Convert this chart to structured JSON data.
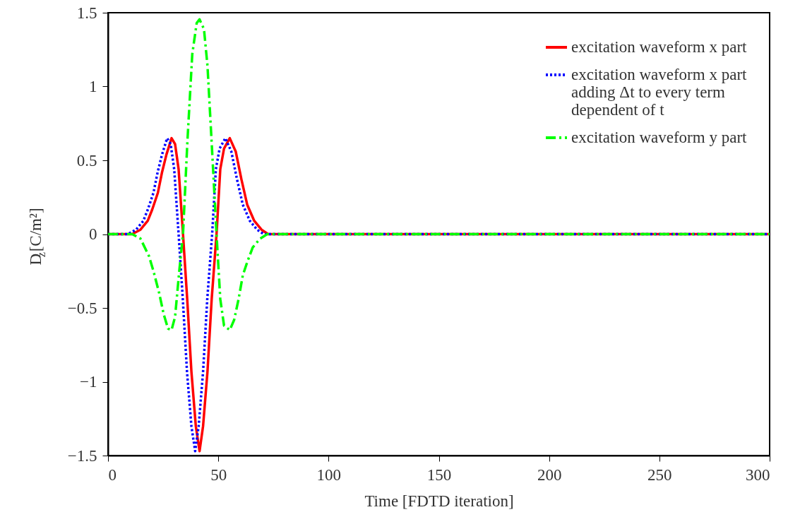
{
  "chart_data": {
    "type": "line",
    "xlabel": "Time [FDTD iteration]",
    "ylabel": "D$_{z}$[C/m²]",
    "xlim": [
      0,
      300
    ],
    "ylim": [
      -1.5,
      1.5
    ],
    "xticks": [
      0,
      50,
      100,
      150,
      200,
      250,
      300
    ],
    "yticks": [
      -1.5,
      {
        "value": -1,
        "label": "−1"
      },
      -0.5,
      {
        "value": 0,
        "label": "0"
      },
      0.5,
      {
        "value": 1,
        "label": "1"
      },
      1.5
    ],
    "grid": false,
    "legend": "top right",
    "marker": "none",
    "series": [
      {
        "name": "excitation waveform x part",
        "color": "#ff0000",
        "line_style": "solid",
        "x": [
          0,
          10.9,
          14.7,
          18,
          20,
          22.6,
          24.5,
          26.5,
          28.8,
          30.4,
          32,
          34,
          35.9,
          37.8,
          39.8,
          41.5,
          43.1,
          45.1,
          47,
          49.2,
          50.9,
          52.6,
          55.2,
          57.9,
          60.5,
          63.1,
          66.3,
          69.6,
          72.6,
          300
        ],
        "values": [
          0,
          0,
          0.03,
          0.09,
          0.165,
          0.28,
          0.42,
          0.54,
          0.65,
          0.61,
          0.44,
          0,
          -0.44,
          -0.93,
          -1.3,
          -1.47,
          -1.3,
          -0.93,
          -0.44,
          0,
          0.44,
          0.58,
          0.65,
          0.56,
          0.37,
          0.2,
          0.09,
          0.03,
          0,
          0
        ]
      },
      {
        "name": "excitation waveform x part\nadding Δt to every term\ndependent of t",
        "color": "#0000ff",
        "line_style": "dotted",
        "x": [
          0,
          8.9,
          12.7,
          16,
          18,
          20.6,
          22.5,
          24.5,
          26.8,
          28.4,
          30,
          32,
          33.9,
          35.8,
          37.8,
          39.5,
          41.1,
          43.1,
          45,
          47.2,
          48.9,
          50.6,
          53.2,
          55.9,
          58.5,
          61.1,
          64.3,
          67.6,
          70.6,
          300
        ],
        "values": [
          0,
          0,
          0.03,
          0.09,
          0.165,
          0.28,
          0.42,
          0.54,
          0.65,
          0.61,
          0.44,
          0,
          -0.44,
          -0.93,
          -1.3,
          -1.47,
          -1.3,
          -0.93,
          -0.44,
          0,
          0.44,
          0.58,
          0.65,
          0.56,
          0.37,
          0.2,
          0.09,
          0.03,
          0,
          0
        ]
      },
      {
        "name": "excitation waveform y part",
        "color": "#00ff00",
        "line_style": "dashed",
        "x": [
          0,
          11,
          14.7,
          18.6,
          20.6,
          23.2,
          25.2,
          27.2,
          28.8,
          30.4,
          32.3,
          34,
          36,
          38.2,
          40.2,
          41.5,
          43.5,
          45.1,
          47.1,
          49.2,
          50.9,
          52.6,
          55.2,
          57.2,
          59.2,
          61.1,
          63.1,
          65.6,
          69,
          72.2,
          300
        ],
        "values": [
          0,
          0,
          -0.03,
          -0.15,
          -0.25,
          -0.4,
          -0.54,
          -0.64,
          -0.65,
          -0.56,
          -0.25,
          0,
          0.63,
          1.22,
          1.43,
          1.455,
          1.39,
          1.14,
          0.59,
          0,
          -0.44,
          -0.62,
          -0.65,
          -0.58,
          -0.44,
          -0.28,
          -0.19,
          -0.09,
          -0.03,
          0,
          0
        ]
      }
    ]
  }
}
